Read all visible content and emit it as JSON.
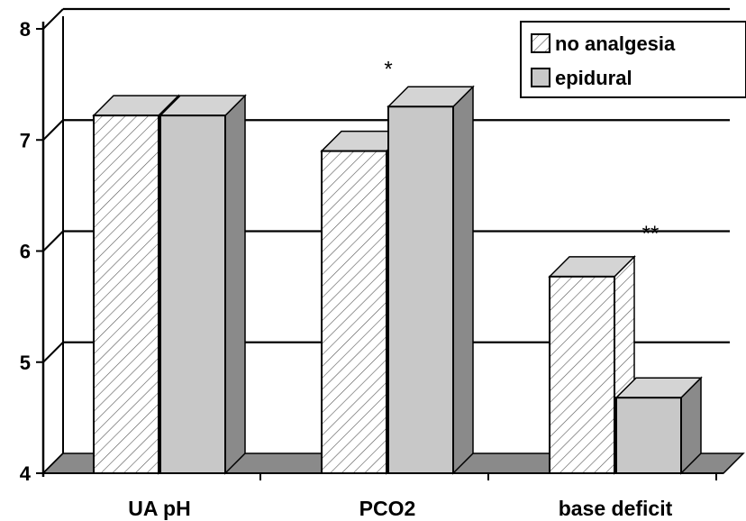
{
  "chart_data": {
    "type": "bar",
    "categories": [
      "UA pH",
      "PCO2",
      "base deficit"
    ],
    "series": [
      {
        "name": "no analgesia",
        "values": [
          7.22,
          6.9,
          5.77
        ]
      },
      {
        "name": "epidural",
        "values": [
          7.22,
          7.3,
          4.68
        ]
      }
    ],
    "ylim": [
      4,
      8
    ],
    "yticks": [
      "4",
      "5",
      "6",
      "7",
      "8"
    ],
    "annotations": [
      {
        "category": "PCO2",
        "text": "*"
      },
      {
        "category": "base deficit",
        "text": "**"
      }
    ],
    "legend_position": "top-right",
    "grid": true,
    "three_d": true,
    "colors": {
      "no_analgesia_fill": "#ffffff",
      "no_analgesia_hatch": "#555555",
      "epidural_fill": "#c8c8c8",
      "side": "#8a8a8a",
      "top": "#d4d4d4",
      "floor": "#8a8a8a",
      "gridline": "#000000"
    }
  }
}
